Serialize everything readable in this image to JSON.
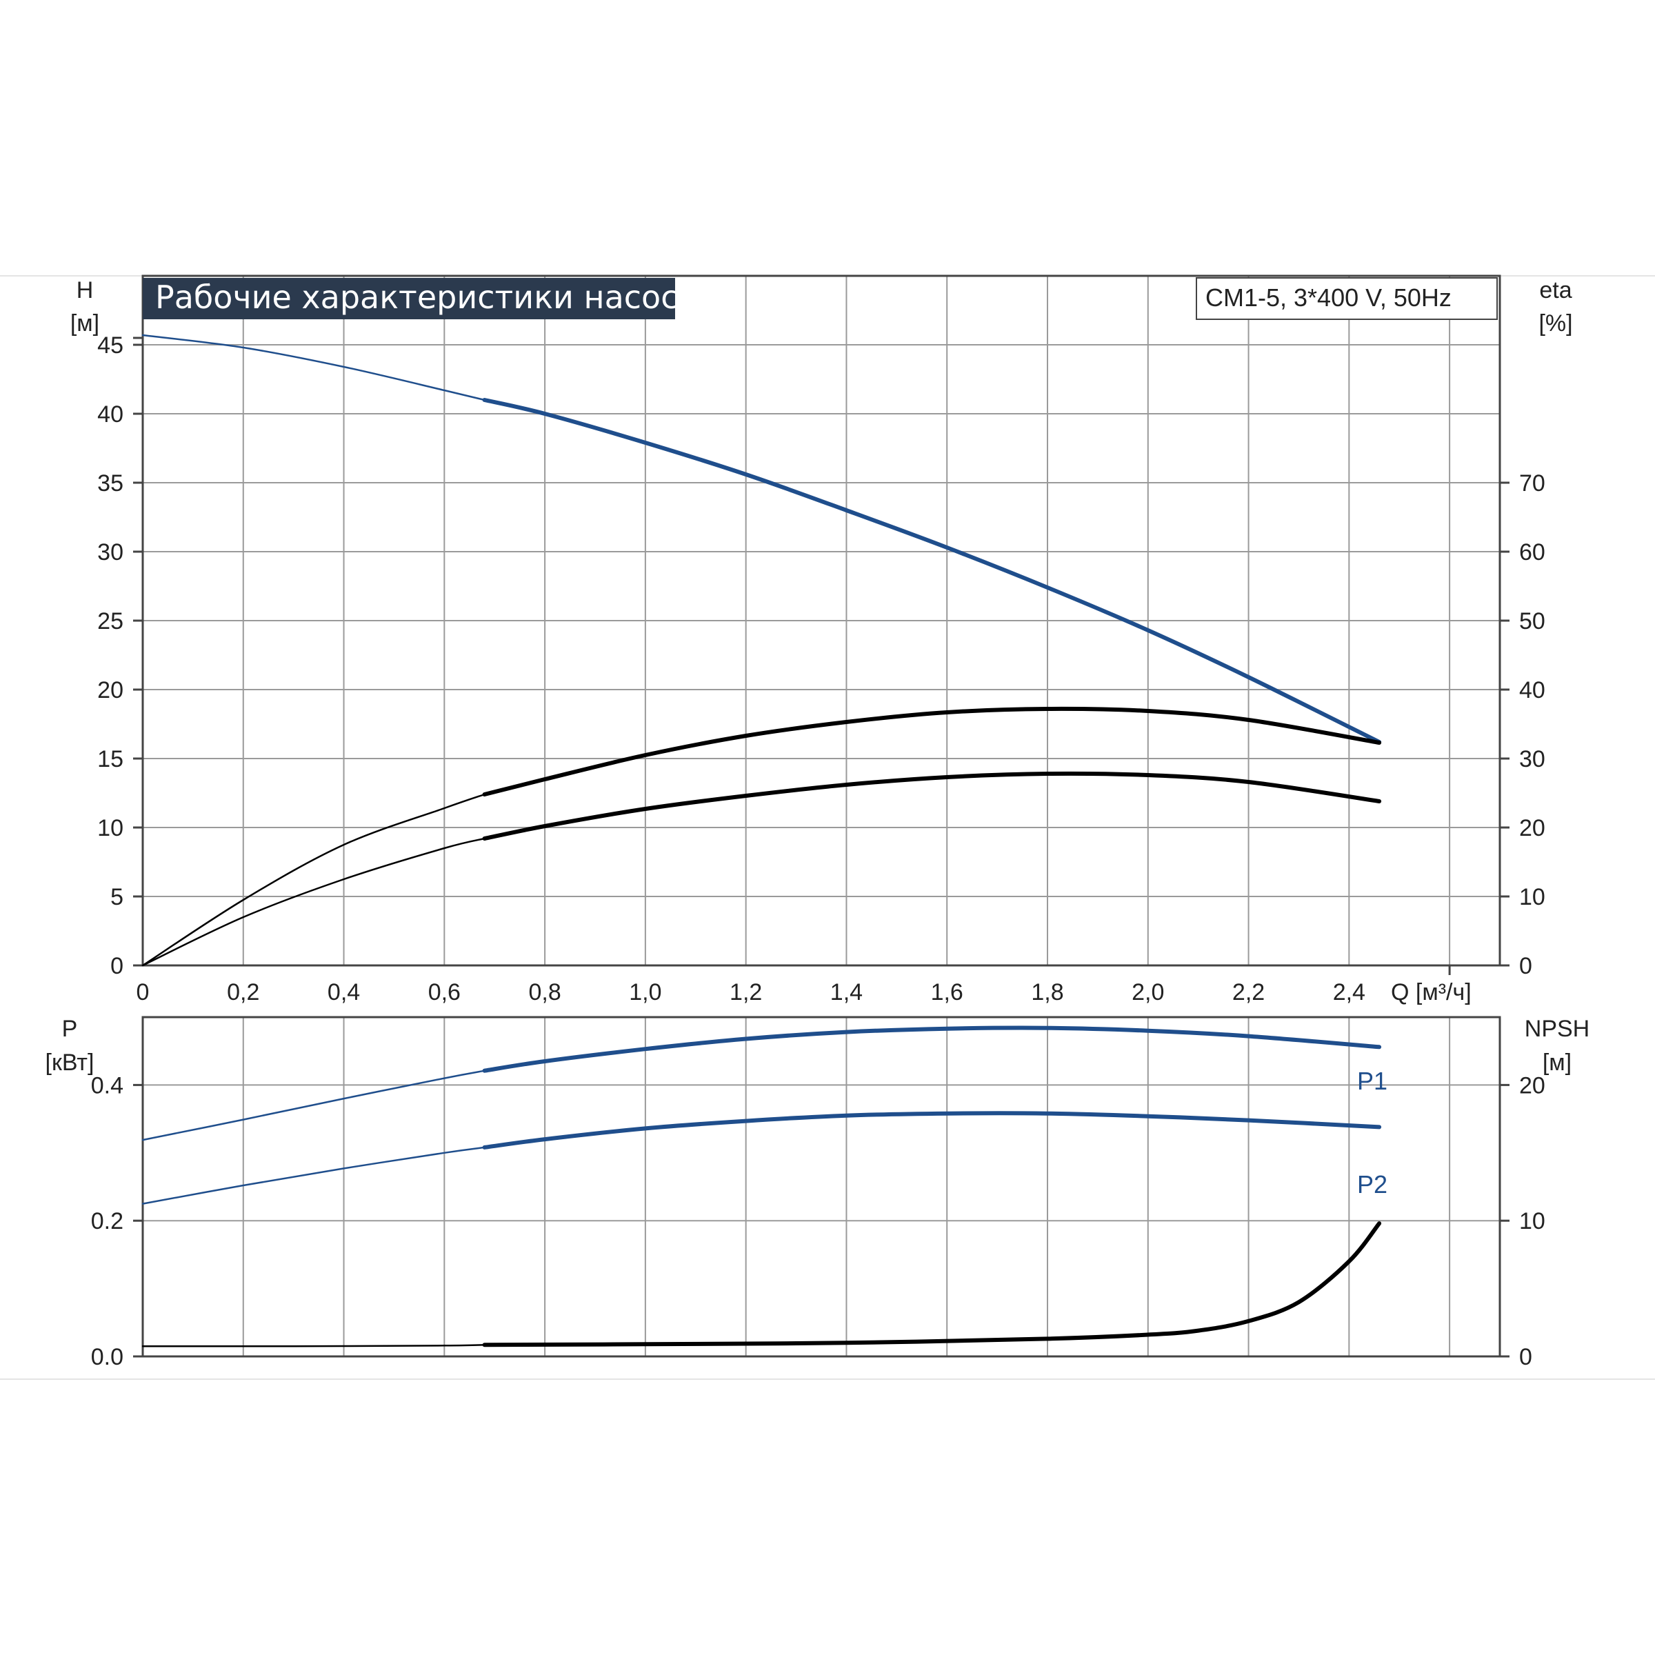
{
  "chart_title": "Рабочие характеристики насоса",
  "model_label": "CM1-5, 3*400 V, 50Hz",
  "axes": {
    "h_label": "H",
    "h_unit": "[м]",
    "eta_label": "eta",
    "eta_unit": "[%]",
    "q_label": "Q [м³/ч]",
    "p_label": "P",
    "p_unit": "[кВт]",
    "npsh_label": "NPSH",
    "npsh_unit": "[м]"
  },
  "colors": {
    "blue_curve": "#1f4e8c",
    "black_curve": "#000000",
    "grid": "#9a9a9a",
    "title_bg": "#2b3a4e"
  },
  "chart_data": [
    {
      "type": "line",
      "panel": "upper",
      "x_ticks": [
        "0",
        "0,2",
        "0,4",
        "0,6",
        "0,8",
        "1,0",
        "1,2",
        "1,4",
        "1,6",
        "1,8",
        "2,0",
        "2,2",
        "2,4"
      ],
      "x_range": [
        0,
        2.7
      ],
      "y_left_ticks": [
        "0",
        "5",
        "10",
        "15",
        "20",
        "25",
        "30",
        "35",
        "40",
        "45"
      ],
      "y_left_range": [
        0,
        50
      ],
      "y_right_ticks": [
        "0",
        "10",
        "20",
        "30",
        "40",
        "50",
        "60",
        "70"
      ],
      "y_right_range": [
        0,
        100
      ],
      "series": [
        {
          "key": "H",
          "axis": "left",
          "color": "#1f4e8c",
          "duty_from": 0.68,
          "x": [
            0,
            0.2,
            0.4,
            0.6,
            0.68,
            0.8,
            1.0,
            1.2,
            1.4,
            1.6,
            1.8,
            2.0,
            2.2,
            2.46
          ],
          "y": [
            45.7,
            44.8,
            43.4,
            41.7,
            41.0,
            40.0,
            37.9,
            35.6,
            33.0,
            30.3,
            27.4,
            24.3,
            20.9,
            16.2
          ]
        },
        {
          "key": "eta_total",
          "axis": "right",
          "color": "#000000",
          "duty_from": 0.68,
          "x": [
            0,
            0.2,
            0.4,
            0.6,
            0.68,
            0.8,
            1.0,
            1.2,
            1.4,
            1.6,
            1.8,
            2.0,
            2.2,
            2.46
          ],
          "y": [
            0,
            9.5,
            17.5,
            22.8,
            24.8,
            27.0,
            30.5,
            33.3,
            35.3,
            36.7,
            37.2,
            36.9,
            35.6,
            32.3
          ]
        },
        {
          "key": "eta_pump",
          "axis": "right",
          "color": "#000000",
          "duty_from": 0.68,
          "x": [
            0,
            0.2,
            0.4,
            0.6,
            0.68,
            0.8,
            1.0,
            1.2,
            1.4,
            1.6,
            1.8,
            2.0,
            2.2,
            2.46
          ],
          "y": [
            0,
            7.0,
            12.5,
            17.0,
            18.4,
            20.2,
            22.7,
            24.6,
            26.2,
            27.3,
            27.8,
            27.6,
            26.6,
            23.8
          ]
        }
      ]
    },
    {
      "type": "line",
      "panel": "lower",
      "x_range": [
        0,
        2.7
      ],
      "y_left_ticks": [
        "0.0",
        "0.2",
        "0.4"
      ],
      "y_left_range": [
        0,
        0.5
      ],
      "y_right_ticks": [
        "0",
        "10",
        "20"
      ],
      "y_right_range": [
        0,
        25
      ],
      "series": [
        {
          "key": "P1",
          "name": "P1",
          "axis": "left",
          "color": "#1f4e8c",
          "duty_from": 0.68,
          "x": [
            0,
            0.2,
            0.4,
            0.6,
            0.68,
            0.8,
            1.0,
            1.2,
            1.4,
            1.6,
            1.8,
            2.0,
            2.2,
            2.46
          ],
          "y": [
            0.319,
            0.349,
            0.38,
            0.41,
            0.421,
            0.435,
            0.453,
            0.468,
            0.478,
            0.483,
            0.484,
            0.48,
            0.472,
            0.456
          ]
        },
        {
          "key": "P2",
          "name": "P2",
          "axis": "left",
          "color": "#1f4e8c",
          "duty_from": 0.68,
          "x": [
            0,
            0.2,
            0.4,
            0.6,
            0.68,
            0.8,
            1.0,
            1.2,
            1.4,
            1.6,
            1.8,
            2.0,
            2.2,
            2.46
          ],
          "y": [
            0.225,
            0.252,
            0.277,
            0.3,
            0.308,
            0.32,
            0.336,
            0.347,
            0.355,
            0.358,
            0.358,
            0.354,
            0.348,
            0.338
          ]
        },
        {
          "key": "NPSH",
          "axis": "right",
          "color": "#000000",
          "duty_from": 0.68,
          "x": [
            0,
            0.3,
            0.6,
            0.68,
            1.0,
            1.4,
            1.8,
            2.0,
            2.1,
            2.2,
            2.3,
            2.4,
            2.46
          ],
          "y": [
            0.75,
            0.75,
            0.8,
            0.85,
            0.9,
            1.0,
            1.3,
            1.6,
            1.9,
            2.6,
            4.0,
            7.0,
            9.8
          ]
        }
      ]
    }
  ]
}
